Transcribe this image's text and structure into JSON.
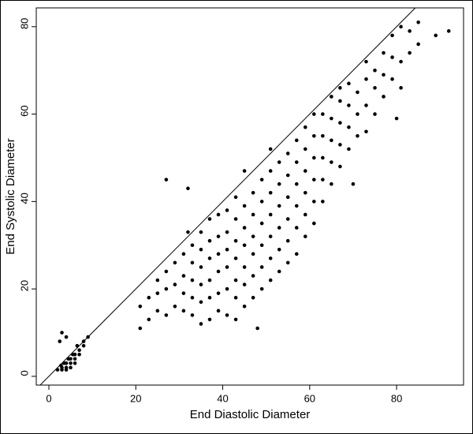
{
  "chart_data": {
    "type": "scatter",
    "x_label": "End Diastolic Diameter",
    "y_label": "End Systolic Diameter",
    "color": "#000000",
    "xlim": [
      -2.9,
      95.4
    ],
    "ylim": [
      -2,
      84.3
    ],
    "xticks": [
      0,
      20,
      40,
      60,
      80
    ],
    "yticks": [
      0,
      20,
      40,
      60,
      80
    ],
    "reference_line": {
      "slope": 1,
      "intercept": 0
    },
    "x": [
      2,
      3,
      3,
      4,
      4,
      5,
      5,
      6,
      6,
      7,
      8,
      9,
      2.5,
      3,
      4,
      5,
      6,
      7,
      4,
      3.5,
      5.5,
      8,
      6.5,
      4.5,
      2.8,
      21,
      21,
      23,
      23,
      25,
      25,
      25,
      27,
      27,
      27,
      27,
      29,
      29,
      29,
      31,
      31,
      31,
      31,
      32,
      32,
      33,
      33,
      33,
      33,
      33,
      35,
      35,
      35,
      35,
      35,
      35,
      37,
      37,
      37,
      37,
      37,
      37,
      39,
      39,
      39,
      39,
      39,
      39,
      41,
      41,
      41,
      41,
      41,
      41,
      43,
      43,
      43,
      43,
      43,
      43,
      43,
      45,
      45,
      45,
      45,
      45,
      45,
      45,
      47,
      47,
      47,
      47,
      47,
      47,
      48,
      49,
      49,
      49,
      49,
      49,
      49,
      51,
      51,
      51,
      51,
      51,
      51,
      51,
      53,
      53,
      53,
      53,
      53,
      53,
      55,
      55,
      55,
      55,
      55,
      55,
      57,
      57,
      57,
      57,
      57,
      57,
      59,
      59,
      59,
      59,
      59,
      59,
      61,
      61,
      61,
      61,
      61,
      61,
      63,
      63,
      63,
      63,
      63,
      65,
      65,
      65,
      65,
      65,
      67,
      67,
      67,
      67,
      67,
      69,
      69,
      69,
      69,
      70,
      71,
      71,
      71,
      73,
      73,
      73,
      73,
      75,
      75,
      75,
      77,
      77,
      77,
      79,
      79,
      79,
      80,
      81,
      81,
      81,
      83,
      83,
      85,
      85,
      89,
      92
    ],
    "values": [
      1.5,
      2,
      1.5,
      2,
      3,
      3,
      4,
      4,
      5,
      6,
      7,
      9,
      8,
      10,
      9,
      2,
      3,
      5,
      1.5,
      3,
      5,
      8,
      7,
      4,
      2.5,
      11,
      16,
      13,
      18,
      15,
      19,
      22,
      14,
      20,
      45,
      24,
      16,
      21,
      26,
      15,
      19,
      23,
      28,
      43,
      33,
      14,
      18,
      22,
      26,
      30,
      12,
      17,
      21,
      25,
      29,
      33,
      13,
      18,
      22,
      27,
      31,
      36,
      15,
      19,
      24,
      28,
      32,
      37,
      14,
      20,
      25,
      29,
      33,
      38,
      13,
      18,
      22,
      27,
      31,
      36,
      41,
      16,
      21,
      25,
      30,
      34,
      39,
      47,
      18,
      23,
      28,
      32,
      37,
      42,
      11,
      20,
      25,
      30,
      35,
      40,
      45,
      22,
      27,
      32,
      37,
      42,
      47,
      52,
      24,
      29,
      34,
      39,
      44,
      49,
      26,
      31,
      36,
      41,
      46,
      51,
      28,
      34,
      39,
      44,
      49,
      54,
      32,
      37,
      42,
      47,
      52,
      57,
      35,
      40,
      45,
      50,
      55,
      60,
      40,
      45,
      50,
      55,
      60,
      44,
      49,
      54,
      59,
      64,
      48,
      53,
      58,
      63,
      66,
      52,
      57,
      62,
      67,
      44,
      55,
      60,
      65,
      56,
      62,
      68,
      72,
      60,
      66,
      70,
      64,
      69,
      74,
      68,
      73,
      78,
      59,
      66,
      72,
      80,
      74,
      79,
      76,
      81,
      78,
      79
    ]
  }
}
